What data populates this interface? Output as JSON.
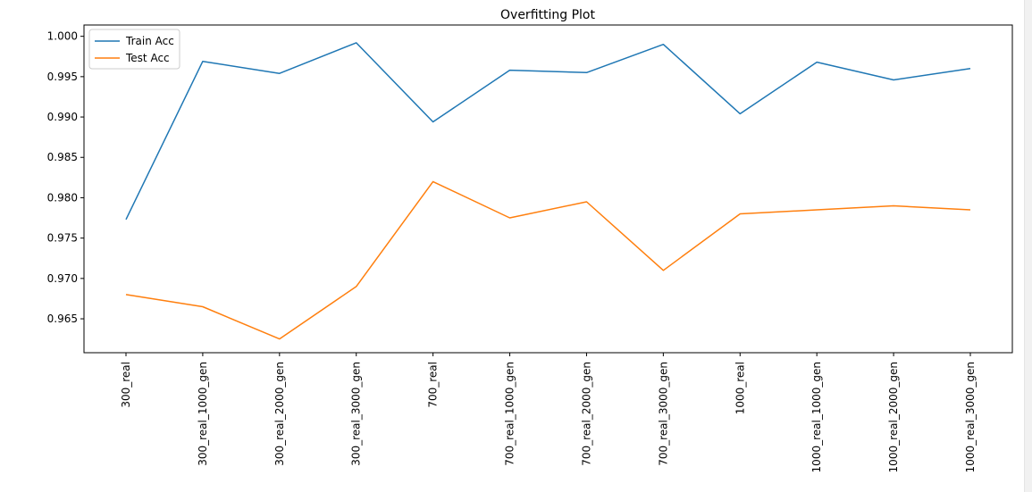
{
  "chart_data": {
    "type": "line",
    "title": "Overfitting Plot",
    "xlabel": "",
    "ylabel": "",
    "categories": [
      "300_real",
      "300_real_1000_gen",
      "300_real_2000_gen",
      "300_real_3000_gen",
      "700_real",
      "700_real_1000_gen",
      "700_real_2000_gen",
      "700_real_3000_gen",
      "1000_real",
      "1000_real_1000_gen",
      "1000_real_2000_gen",
      "1000_real_3000_gen"
    ],
    "series": [
      {
        "name": "Train Acc",
        "color": "#1f77b4",
        "values": [
          0.9773,
          0.9969,
          0.9954,
          0.9992,
          0.9894,
          0.9958,
          0.9955,
          0.999,
          0.9904,
          0.9968,
          0.9946,
          0.996
        ]
      },
      {
        "name": "Test Acc",
        "color": "#ff7f0e",
        "values": [
          0.968,
          0.9665,
          0.9625,
          0.969,
          0.982,
          0.9775,
          0.9795,
          0.971,
          0.978,
          0.9785,
          0.979,
          0.9785
        ]
      }
    ],
    "yticks": [
      "0.965",
      "0.970",
      "0.975",
      "0.980",
      "0.985",
      "0.990",
      "0.995",
      "1.000"
    ],
    "ylim": [
      0.9608,
      1.0014
    ],
    "grid": false,
    "legend": "top-left"
  }
}
